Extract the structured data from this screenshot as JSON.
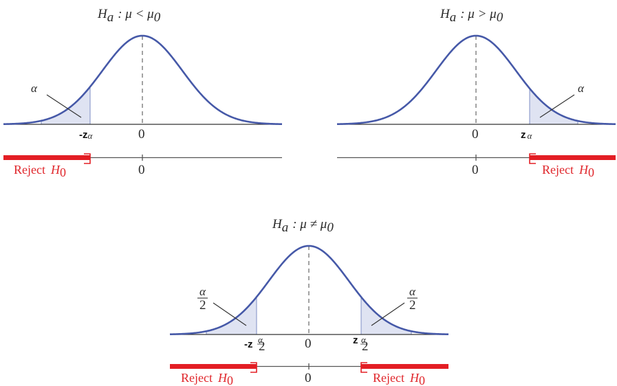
{
  "panels": {
    "left": {
      "title_H": "H",
      "title_sub": "a",
      "title_rest": ": μ < μ",
      "title_sub0": "0",
      "area_label": "α",
      "z_prefix": "-",
      "z_letter": "z",
      "z_sub": "α",
      "zero": "0",
      "zero_line": "0",
      "reject_word": "Reject",
      "reject_H": "H",
      "reject_sub": "0"
    },
    "right": {
      "title_H": "H",
      "title_sub": "a",
      "title_rest": ": μ > μ",
      "title_sub0": "0",
      "area_label": "α",
      "z_letter": "z",
      "z_sub": "α",
      "zero": "0",
      "zero_line": "0",
      "reject_word": "Reject",
      "reject_H": "H",
      "reject_sub": "0"
    },
    "bottom": {
      "title_H": "H",
      "title_sub": "a",
      "title_rest": ": μ ≠ μ",
      "title_sub0": "0",
      "left_frac_num": "α",
      "left_frac_den": "2",
      "right_frac_num": "α",
      "right_frac_den": "2",
      "z_left_prefix": "-",
      "z_left_letter": "z",
      "z_left_num": "α",
      "z_left_den": "2",
      "z_right_letter": "z",
      "z_right_num": "α",
      "z_right_den": "2",
      "zero": "0",
      "zero_line": "0",
      "reject_left_word": "Reject",
      "reject_left_H": "H",
      "reject_left_sub": "0",
      "reject_right_word": "Reject",
      "reject_right_H": "H",
      "reject_right_sub": "0"
    }
  },
  "colors": {
    "curve": "#4659a8",
    "tail_fill": "#dfe3f2",
    "reject_red": "#e31e24"
  }
}
